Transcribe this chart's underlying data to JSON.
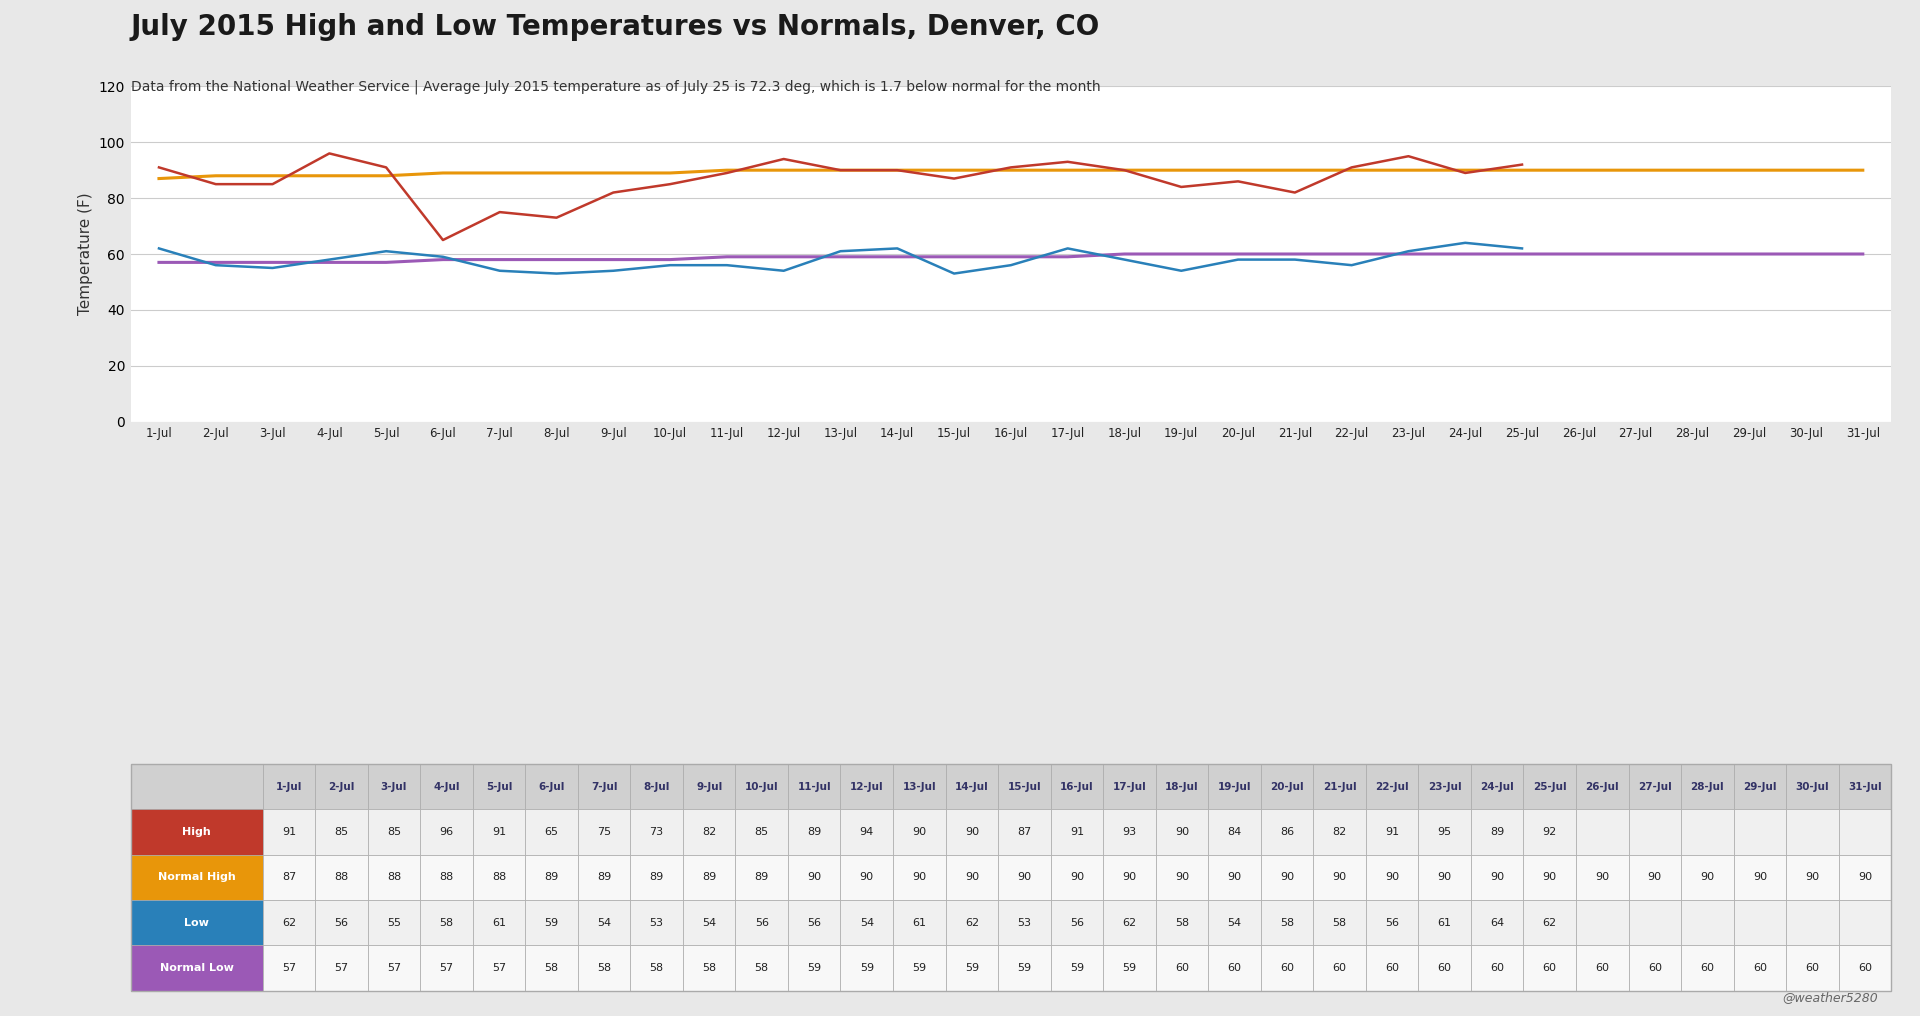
{
  "title": "July 2015 High and Low Temperatures vs Normals, Denver, CO",
  "subtitle": "Data from the National Weather Service | Average July 2015 temperature as of July 25 is 72.3 deg, which is 1.7 below normal for the month",
  "ylabel": "Temperature (F)",
  "watermark": "@weather5280",
  "days": [
    "1-Jul",
    "2-Jul",
    "3-Jul",
    "4-Jul",
    "5-Jul",
    "6-Jul",
    "7-Jul",
    "8-Jul",
    "9-Jul",
    "10-Jul",
    "11-Jul",
    "12-Jul",
    "13-Jul",
    "14-Jul",
    "15-Jul",
    "16-Jul",
    "17-Jul",
    "18-Jul",
    "19-Jul",
    "20-Jul",
    "21-Jul",
    "22-Jul",
    "23-Jul",
    "24-Jul",
    "25-Jul",
    "26-Jul",
    "27-Jul",
    "28-Jul",
    "29-Jul",
    "30-Jul",
    "31-Jul"
  ],
  "high": [
    91,
    85,
    85,
    96,
    91,
    65,
    75,
    73,
    82,
    85,
    89,
    94,
    90,
    90,
    87,
    91,
    93,
    90,
    84,
    86,
    82,
    91,
    95,
    89,
    92,
    null,
    null,
    null,
    null,
    null,
    null
  ],
  "normal_high": [
    87,
    88,
    88,
    88,
    88,
    89,
    89,
    89,
    89,
    89,
    90,
    90,
    90,
    90,
    90,
    90,
    90,
    90,
    90,
    90,
    90,
    90,
    90,
    90,
    90,
    90,
    90,
    90,
    90,
    90,
    90
  ],
  "low": [
    62,
    56,
    55,
    58,
    61,
    59,
    54,
    53,
    54,
    56,
    56,
    54,
    61,
    62,
    53,
    56,
    62,
    58,
    54,
    58,
    58,
    56,
    61,
    64,
    62,
    null,
    null,
    null,
    null,
    null,
    null
  ],
  "normal_low": [
    57,
    57,
    57,
    57,
    57,
    58,
    58,
    58,
    58,
    58,
    59,
    59,
    59,
    59,
    59,
    59,
    59,
    60,
    60,
    60,
    60,
    60,
    60,
    60,
    60,
    60,
    60,
    60,
    60,
    60,
    60
  ],
  "high_color": "#c0392b",
  "normal_high_color": "#e8960a",
  "low_color": "#2980b9",
  "normal_low_color": "#9b59b6",
  "bg_color": "#e8e8e8",
  "plot_bg_color": "#ffffff",
  "grid_color": "#cccccc",
  "ylim": [
    0,
    120
  ],
  "yticks": [
    0,
    20,
    40,
    60,
    80,
    100,
    120
  ],
  "title_fontsize": 20,
  "subtitle_fontsize": 10,
  "table_header_bg": "#d0d0d0",
  "table_high_bg": "#f0f0f0",
  "table_norm_high_bg": "#f8f8f8",
  "table_low_bg": "#f0f0f0",
  "table_norm_low_bg": "#f8f8f8",
  "table_border_color": "#aaaaaa",
  "legend_label_bg": [
    "#c0392b",
    "#e8960a",
    "#2980b9",
    "#9b59b6"
  ],
  "legend_labels": [
    "High",
    "Normal High",
    "Low",
    "Normal Low"
  ]
}
